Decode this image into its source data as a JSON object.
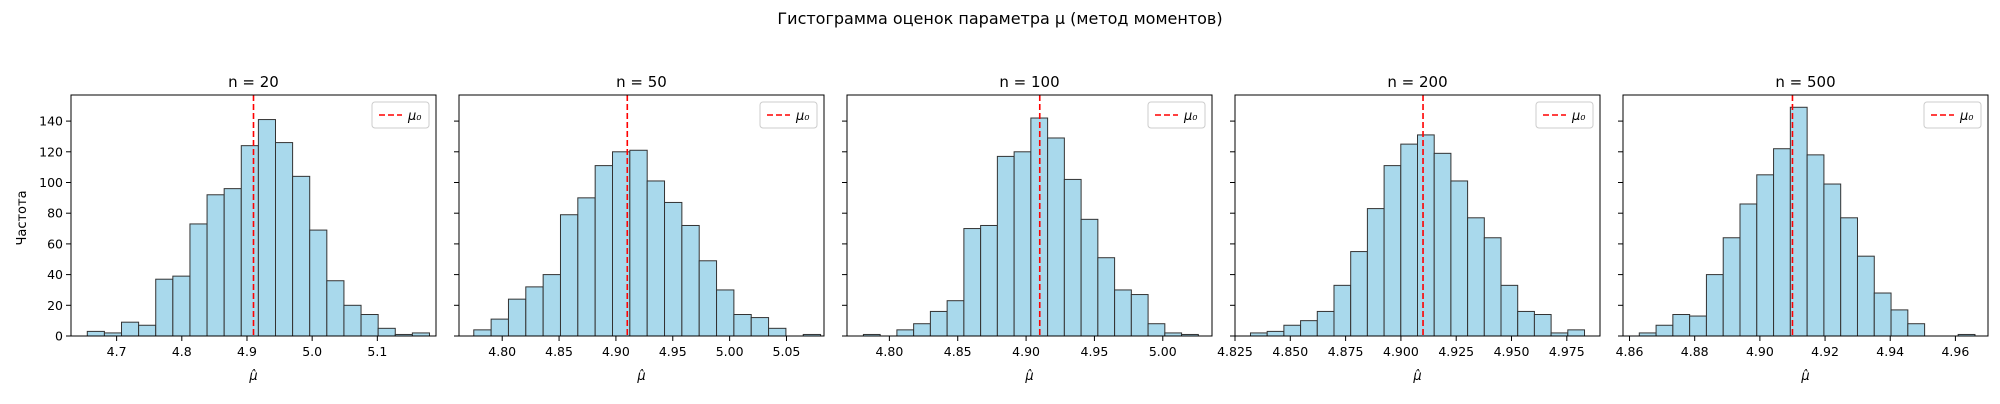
{
  "figure": {
    "suptitle": "Гистограмма оценок параметра μ (метод моментов)",
    "ylabel": "Частота",
    "xlabel": "μ̂",
    "legend_label": "μ₀"
  },
  "chart_data": [
    {
      "type": "bar",
      "title": "n = 20",
      "xlabel": "μ̂",
      "ylabel": "Частота",
      "xlim": [
        4.63,
        5.19
      ],
      "ylim": [
        0,
        157
      ],
      "xticks": [
        4.7,
        4.8,
        4.9,
        5.0,
        5.1
      ],
      "xtick_labels": [
        "4.7",
        "4.8",
        "4.9",
        "5.0",
        "5.1"
      ],
      "yticks": [
        0,
        20,
        40,
        60,
        80,
        100,
        120,
        140
      ],
      "ytick_labels": [
        "0",
        "20",
        "40",
        "60",
        "80",
        "100",
        "120",
        "140"
      ],
      "bin_start": 4.655,
      "bin_width": 0.02625,
      "values": [
        3,
        2,
        9,
        7,
        37,
        39,
        73,
        92,
        96,
        124,
        141,
        126,
        104,
        69,
        36,
        20,
        14,
        5,
        1,
        2
      ],
      "mu0": 4.91,
      "legend": [
        "μ₀"
      ],
      "legend_position": "top-right"
    },
    {
      "type": "bar",
      "title": "n = 50",
      "xlabel": "μ̂",
      "ylim": [
        0,
        157
      ],
      "xlim": [
        4.762,
        5.083
      ],
      "xticks": [
        4.8,
        4.85,
        4.9,
        4.95,
        5.0,
        5.05
      ],
      "xtick_labels": [
        "4.80",
        "4.85",
        "4.90",
        "4.95",
        "5.00",
        "5.05"
      ],
      "bin_start": 4.775,
      "bin_width": 0.01525,
      "values": [
        4,
        11,
        24,
        32,
        40,
        79,
        90,
        111,
        120,
        121,
        101,
        87,
        72,
        49,
        30,
        14,
        12,
        5,
        0,
        1
      ],
      "mu0": 4.91,
      "legend": [
        "μ₀"
      ],
      "legend_position": "top-right"
    },
    {
      "type": "bar",
      "title": "n = 100",
      "xlabel": "μ̂",
      "ylim": [
        0,
        157
      ],
      "xlim": [
        4.769,
        5.036
      ],
      "xticks": [
        4.8,
        4.85,
        4.9,
        4.95,
        5.0
      ],
      "xtick_labels": [
        "4.80",
        "4.85",
        "4.90",
        "4.95",
        "5.00"
      ],
      "bin_start": 4.781,
      "bin_width": 0.01225,
      "values": [
        1,
        0,
        4,
        8,
        16,
        23,
        70,
        72,
        117,
        120,
        142,
        129,
        102,
        76,
        51,
        30,
        27,
        8,
        2,
        1
      ],
      "mu0": 4.91,
      "legend": [
        "μ₀"
      ],
      "legend_position": "top-right"
    },
    {
      "type": "bar",
      "title": "n = 200",
      "xlabel": "μ̂",
      "ylim": [
        0,
        157
      ],
      "xlim": [
        4.825,
        4.99
      ],
      "xticks": [
        4.825,
        4.85,
        4.875,
        4.9,
        4.925,
        4.95,
        4.975
      ],
      "xtick_labels": [
        "4.825",
        "4.850",
        "4.875",
        "4.900",
        "4.925",
        "4.950",
        "4.975"
      ],
      "bin_start": 4.832,
      "bin_width": 0.00755,
      "values": [
        2,
        3,
        7,
        10,
        16,
        33,
        55,
        83,
        111,
        125,
        131,
        119,
        101,
        77,
        64,
        33,
        16,
        14,
        2,
        4
      ],
      "mu0": 4.91,
      "legend": [
        "μ₀"
      ],
      "legend_position": "top-right"
    },
    {
      "type": "bar",
      "title": "n = 500",
      "xlabel": "μ̂",
      "ylim": [
        0,
        157
      ],
      "xlim": [
        4.858,
        4.97
      ],
      "xticks": [
        4.86,
        4.88,
        4.9,
        4.92,
        4.94,
        4.96
      ],
      "xtick_labels": [
        "4.86",
        "4.88",
        "4.90",
        "4.92",
        "4.94",
        "4.96"
      ],
      "bin_start": 4.863,
      "bin_width": 0.00515,
      "values": [
        2,
        7,
        14,
        13,
        40,
        64,
        86,
        105,
        122,
        149,
        118,
        99,
        77,
        52,
        28,
        17,
        8,
        0,
        0,
        1
      ],
      "mu0": 4.91,
      "legend": [
        "μ₀"
      ],
      "legend_position": "top-right"
    }
  ],
  "colors": {
    "bar_fill": "#a9d9ec",
    "bar_edge": "#333333",
    "mu0_line": "#ff0000",
    "axes": "#000000",
    "text": "#000000"
  }
}
